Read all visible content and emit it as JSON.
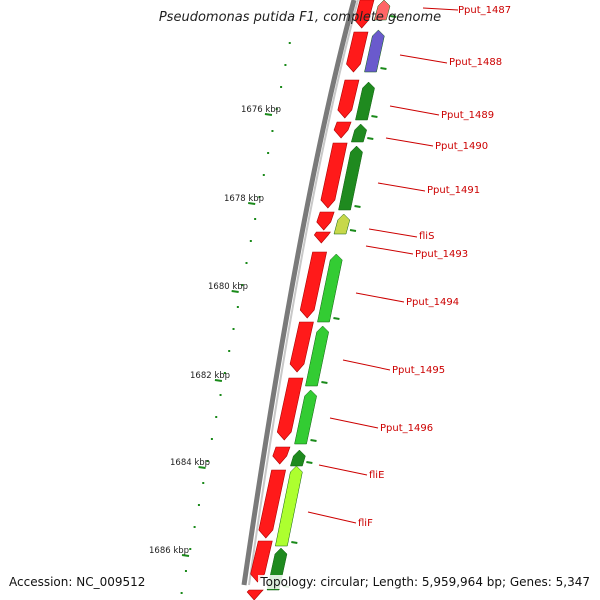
{
  "header": {
    "title": "Pseudomonas putida F1, complete genome"
  },
  "footer": {
    "accession": "Accession: NC_009512",
    "summary": "Topology: circular; Length: 5,959,964 bp; Genes: 5,347"
  },
  "scale_labels": [
    "1676 kbp",
    "1678 kbp",
    "1680 kbp",
    "1682 kbp",
    "1684 kbp",
    "1686 kbp"
  ],
  "genes": [
    {
      "name": "Pput_1487",
      "color": "#ff1a1a"
    },
    {
      "name": "Pput_1488",
      "color": "#6a5acd"
    },
    {
      "name": "Pput_1489",
      "color": "#1f8a1f"
    },
    {
      "name": "Pput_1490",
      "color": "#1f8a1f"
    },
    {
      "name": "Pput_1491",
      "color": "#1f8a1f"
    },
    {
      "name": "fliS",
      "color": "#9acd32"
    },
    {
      "name": "Pput_1493",
      "color": "#ff1a1a"
    },
    {
      "name": "Pput_1494",
      "color": "#33cc33"
    },
    {
      "name": "Pput_1495",
      "color": "#33cc33"
    },
    {
      "name": "Pput_1496",
      "color": "#33cc33"
    },
    {
      "name": "fliE",
      "color": "#adff2f"
    },
    {
      "name": "fliF",
      "color": "#1f8a1f"
    }
  ],
  "colors": {
    "cds_forward": "#ff1a1a",
    "backbone": "#7f7f7f",
    "tick": "#1a8a1a",
    "label": "#cc0000"
  }
}
